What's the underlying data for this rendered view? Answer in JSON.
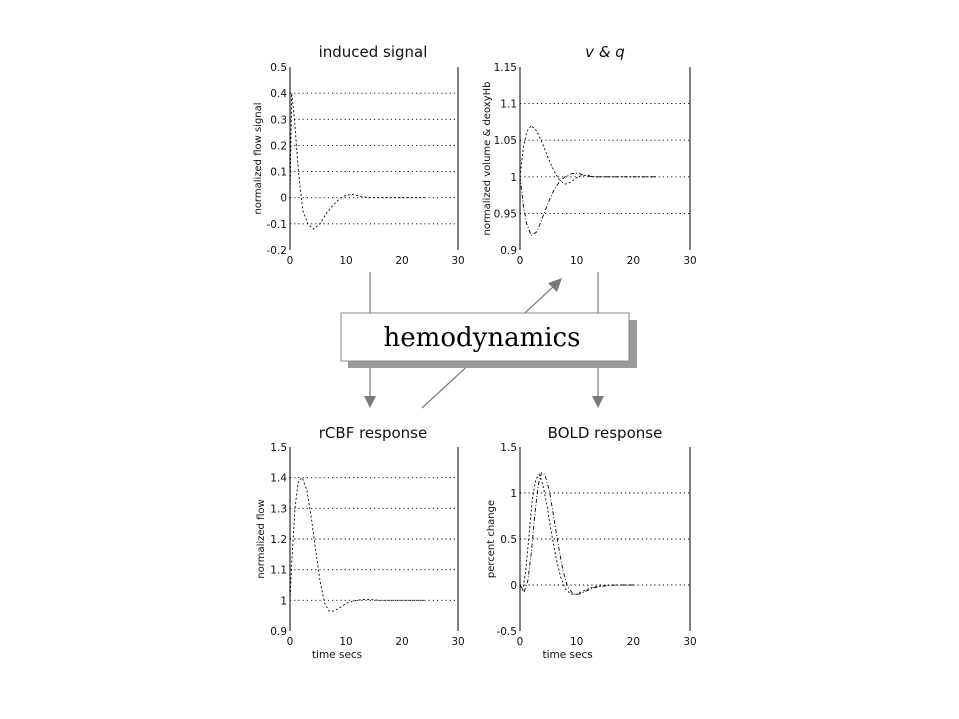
{
  "center_box": {
    "label": "hemodynamics"
  },
  "chart_data": [
    {
      "id": "induced",
      "type": "line",
      "title": "induced signal",
      "title_italic": false,
      "ylabel": "normalized flow signal",
      "xlabel": "",
      "xlim": [
        0,
        30
      ],
      "ylim": [
        -0.2,
        0.5
      ],
      "xticks": [
        "0",
        "10",
        "20",
        "30"
      ],
      "yticks": [
        "-0.2",
        "-0.1",
        "0",
        "0.1",
        "0.2",
        "0.3",
        "0.4",
        "0.5"
      ],
      "ytick_values": [
        -0.2,
        -0.1,
        0,
        0.1,
        0.2,
        0.3,
        0.4,
        0.5
      ],
      "grid": "horizontal dotted",
      "series": [
        {
          "x": [
            0,
            0.3,
            0.8,
            1.5,
            2.3,
            3.2,
            4.2,
            5.3,
            6.5,
            7.6,
            8.8,
            10,
            11.2,
            12.5,
            14,
            17,
            20,
            24
          ],
          "y": [
            0,
            0.4,
            0.3,
            0.1,
            -0.05,
            -0.1,
            -0.12,
            -0.1,
            -0.06,
            -0.03,
            -0.005,
            0.01,
            0.012,
            0.006,
            0,
            0,
            0,
            0
          ]
        }
      ]
    },
    {
      "id": "vq",
      "type": "line",
      "title": "v & q",
      "title_italic": true,
      "ylabel": "normalized volume & deoxyHb",
      "xlabel": "",
      "xlim": [
        0,
        30
      ],
      "ylim": [
        0.9,
        1.15
      ],
      "xticks": [
        "0",
        "10",
        "20",
        "30"
      ],
      "yticks": [
        "0.9",
        "0.95",
        "1",
        "1.05",
        "1.1",
        "1.15"
      ],
      "ytick_values": [
        0.9,
        0.95,
        1.0,
        1.05,
        1.1,
        1.15
      ],
      "grid": "horizontal dotted",
      "series": [
        {
          "x": [
            0,
            0.6,
            1.2,
            2,
            3,
            4,
            5,
            6,
            7,
            8,
            9,
            10,
            11,
            12,
            13,
            15,
            18,
            22,
            24
          ],
          "y": [
            1.0,
            1.04,
            1.062,
            1.07,
            1.062,
            1.045,
            1.025,
            1.008,
            0.995,
            0.99,
            0.993,
            0.999,
            1.002,
            1.002,
            1.0,
            1.0,
            1.0,
            1.0,
            1.0
          ]
        },
        {
          "x": [
            0,
            0.6,
            1.2,
            2,
            3,
            4,
            5,
            6,
            7,
            8,
            9,
            10,
            11,
            12,
            13,
            15,
            18,
            22,
            24
          ],
          "y": [
            1.0,
            0.96,
            0.935,
            0.92,
            0.925,
            0.945,
            0.965,
            0.982,
            0.994,
            1.0,
            1.004,
            1.005,
            1.003,
            1.001,
            1.0,
            1.0,
            1.0,
            1.0,
            1.0
          ]
        }
      ]
    },
    {
      "id": "rcbf",
      "type": "line",
      "title": "rCBF response",
      "title_italic": false,
      "ylabel": "normalized flow",
      "xlabel": "time secs",
      "xlim": [
        0,
        30
      ],
      "ylim": [
        0.9,
        1.5
      ],
      "xticks": [
        "0",
        "10",
        "20",
        "30"
      ],
      "yticks": [
        "0.9",
        "1",
        "1.1",
        "1.2",
        "1.3",
        "1.4",
        "1.5"
      ],
      "ytick_values": [
        0.9,
        1.0,
        1.1,
        1.2,
        1.3,
        1.4,
        1.5
      ],
      "grid": "horizontal dotted",
      "series": [
        {
          "x": [
            0,
            0.4,
            0.9,
            1.5,
            2.2,
            3,
            3.8,
            4.6,
            5.4,
            6.2,
            7,
            7.8,
            8.8,
            10,
            11.5,
            13,
            14.5,
            16,
            18,
            21,
            24
          ],
          "y": [
            1.0,
            1.15,
            1.3,
            1.39,
            1.4,
            1.36,
            1.27,
            1.16,
            1.06,
            0.99,
            0.965,
            0.965,
            0.975,
            0.99,
            0.998,
            1.003,
            1.002,
            1.0,
            1.0,
            1.0,
            1.0
          ]
        }
      ]
    },
    {
      "id": "bold",
      "type": "line",
      "title": "BOLD response",
      "title_italic": false,
      "ylabel": "percent change",
      "xlabel": "time secs",
      "xlim": [
        0,
        30
      ],
      "ylim": [
        -0.5,
        1.5
      ],
      "xticks": [
        "0",
        "10",
        "20",
        "30"
      ],
      "yticks": [
        "-0.5",
        "0",
        "0.5",
        "1",
        "1.5"
      ],
      "ytick_values": [
        -0.5,
        0,
        0.5,
        1,
        1.5
      ],
      "grid": "horizontal dotted",
      "series": [
        {
          "x": [
            0,
            0.5,
            1,
            1.6,
            2.2,
            2.8,
            3.4,
            4,
            4.8,
            5.6,
            6.4,
            7.2,
            8,
            9,
            10,
            11,
            12.5,
            14,
            16,
            18,
            20
          ],
          "y": [
            0,
            -0.05,
            0.15,
            0.55,
            0.95,
            1.15,
            1.2,
            1.1,
            0.85,
            0.55,
            0.28,
            0.08,
            -0.04,
            -0.1,
            -0.1,
            -0.07,
            -0.03,
            -0.01,
            0,
            0,
            0
          ]
        },
        {
          "x": [
            0,
            0.7,
            1.4,
            2,
            2.6,
            3.2,
            3.8,
            4.4,
            5.2,
            6,
            6.8,
            7.6,
            8.4,
            9.4,
            10.4,
            11.5,
            13,
            15,
            17,
            19,
            20
          ],
          "y": [
            0,
            -0.08,
            0.05,
            0.35,
            0.75,
            1.08,
            1.22,
            1.2,
            1.02,
            0.72,
            0.42,
            0.15,
            -0.02,
            -0.1,
            -0.1,
            -0.07,
            -0.03,
            -0.01,
            0,
            0,
            0
          ]
        }
      ]
    }
  ]
}
